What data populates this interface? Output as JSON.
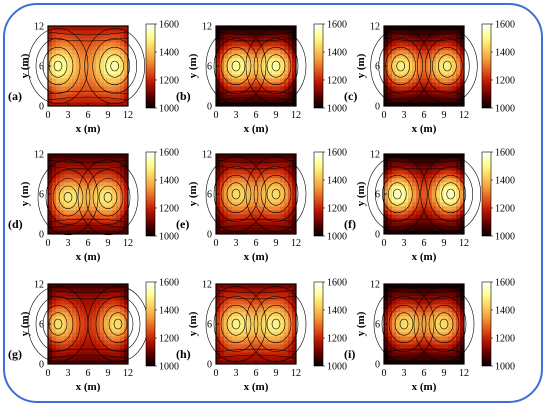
{
  "frame_color": "#3d6fd6",
  "chart_data": {
    "type": "heatmap",
    "colormap": [
      "#000000",
      "#5a0000",
      "#b31200",
      "#e0501a",
      "#f29a3c",
      "#fad560",
      "#ffff9a",
      "#ffffff"
    ],
    "xlabel": "x (m)",
    "ylabel": "y (m)",
    "xlim": [
      0,
      12
    ],
    "ylim": [
      0,
      12
    ],
    "xticks": [
      "0",
      "3",
      "6",
      "9",
      "12"
    ],
    "yticks": [
      "0",
      "6",
      "12"
    ],
    "colorbar": {
      "range": [
        1000,
        1600
      ],
      "ticks": [
        "1000",
        "1200",
        "1400",
        "1600"
      ]
    },
    "panels": [
      {
        "label": "(a)",
        "peaks": [
          [
            1.5,
            6
          ],
          [
            10,
            6
          ]
        ],
        "peak_value": 1560,
        "background": 1250
      },
      {
        "label": "(b)",
        "peaks": [
          [
            3,
            6
          ],
          [
            9,
            6
          ]
        ],
        "peak_value": 1520,
        "background": 1100
      },
      {
        "label": "(c)",
        "peaks": [
          [
            2.5,
            6
          ],
          [
            9.5,
            6
          ]
        ],
        "peak_value": 1500,
        "background": 1100
      },
      {
        "label": "(d)",
        "peaks": [
          [
            3,
            5.5
          ],
          [
            9,
            5.5
          ]
        ],
        "peak_value": 1480,
        "background": 1150
      },
      {
        "label": "(e)",
        "peaks": [
          [
            3,
            6
          ],
          [
            9,
            6
          ]
        ],
        "peak_value": 1450,
        "background": 1150
      },
      {
        "label": "(f)",
        "peaks": [
          [
            2,
            6
          ],
          [
            10,
            6
          ]
        ],
        "peak_value": 1580,
        "background": 1100
      },
      {
        "label": "(g)",
        "peaks": [
          [
            1.5,
            6
          ],
          [
            10.5,
            6
          ]
        ],
        "peak_value": 1480,
        "background": 1150
      },
      {
        "label": "(h)",
        "peaks": [
          [
            3,
            6
          ],
          [
            9,
            6
          ]
        ],
        "peak_value": 1500,
        "background": 1200
      },
      {
        "label": "(i)",
        "peaks": [
          [
            3,
            6
          ],
          [
            9,
            6
          ]
        ],
        "peak_value": 1450,
        "background": 1100
      }
    ]
  }
}
